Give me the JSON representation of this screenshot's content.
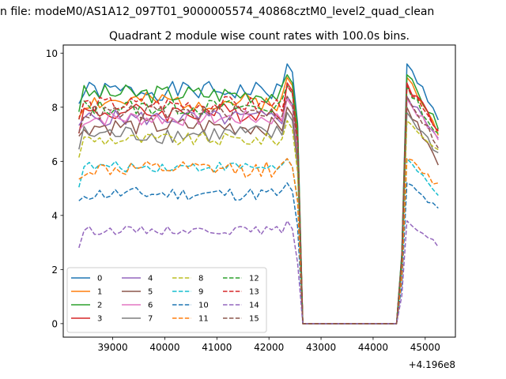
{
  "chart_data": {
    "type": "line",
    "suptitle": "n file: modeM0/AS1A12_097T01_9000005574_40868cztM0_level2_quad_clean",
    "title": "Quadrant 2 module wise count rates with 100.0s bins.",
    "xlabel": "",
    "ylabel": "",
    "x_offset_label": "+4.196e8",
    "x_offset_value": 419600000,
    "x_ticks": [
      39000,
      40000,
      41000,
      42000,
      43000,
      44000,
      45000
    ],
    "y_ticks": [
      0,
      2,
      4,
      6,
      8,
      10
    ],
    "xlim": [
      38050,
      45580
    ],
    "ylim": [
      -0.5,
      10.3
    ],
    "grid": false,
    "legend_position": "lower-left",
    "legend_columns": 4,
    "x_start": 38350,
    "x_step": 100,
    "gap_start_index": 42,
    "gap_end_index": 61,
    "series": [
      {
        "name": "0",
        "color": "#1f77b4",
        "style": "solid",
        "level": 8.6,
        "amp": 0.35,
        "peak": 9.6,
        "tail": 7.7,
        "seed": 1
      },
      {
        "name": "1",
        "color": "#ff7f0e",
        "style": "solid",
        "level": 8.2,
        "amp": 0.35,
        "peak": 9.1,
        "tail": 7.1,
        "seed": 2
      },
      {
        "name": "2",
        "color": "#2ca02c",
        "style": "solid",
        "level": 8.5,
        "amp": 0.35,
        "peak": 9.2,
        "tail": 7.3,
        "seed": 3
      },
      {
        "name": "3",
        "color": "#d62728",
        "style": "solid",
        "level": 7.8,
        "amp": 0.35,
        "peak": 8.9,
        "tail": 7.2,
        "seed": 4
      },
      {
        "name": "4",
        "color": "#9467bd",
        "style": "solid",
        "level": 7.6,
        "amp": 0.3,
        "peak": 8.4,
        "tail": 6.9,
        "seed": 5
      },
      {
        "name": "5",
        "color": "#8c564b",
        "style": "solid",
        "level": 7.3,
        "amp": 0.35,
        "peak": 8.0,
        "tail": 5.9,
        "seed": 6
      },
      {
        "name": "6",
        "color": "#e377c2",
        "style": "solid",
        "level": 7.6,
        "amp": 0.3,
        "peak": 8.3,
        "tail": 6.8,
        "seed": 7
      },
      {
        "name": "7",
        "color": "#7f7f7f",
        "style": "solid",
        "level": 7.0,
        "amp": 0.35,
        "peak": 7.8,
        "tail": 6.3,
        "seed": 8
      },
      {
        "name": "8",
        "color": "#bcbd22",
        "style": "dashed",
        "level": 6.8,
        "amp": 0.25,
        "peak": 7.5,
        "tail": 6.4,
        "seed": 9
      },
      {
        "name": "9",
        "color": "#17becf",
        "style": "dashed",
        "level": 5.8,
        "amp": 0.2,
        "peak": 6.1,
        "tail": 4.7,
        "seed": 10
      },
      {
        "name": "10",
        "color": "#1f77b4",
        "style": "dashed",
        "level": 4.8,
        "amp": 0.25,
        "peak": 5.2,
        "tail": 4.2,
        "seed": 11
      },
      {
        "name": "11",
        "color": "#ff7f0e",
        "style": "dashed",
        "level": 5.7,
        "amp": 0.3,
        "peak": 6.1,
        "tail": 5.1,
        "seed": 12
      },
      {
        "name": "12",
        "color": "#2ca02c",
        "style": "dashed",
        "level": 8.0,
        "amp": 0.3,
        "peak": 8.8,
        "tail": 6.9,
        "seed": 13
      },
      {
        "name": "13",
        "color": "#d62728",
        "style": "dashed",
        "level": 8.1,
        "amp": 0.3,
        "peak": 8.8,
        "tail": 7.0,
        "seed": 14
      },
      {
        "name": "14",
        "color": "#9467bd",
        "style": "dashed",
        "level": 3.45,
        "amp": 0.15,
        "peak": 3.8,
        "tail": 2.9,
        "seed": 15
      },
      {
        "name": "15",
        "color": "#8c564b",
        "style": "dashed",
        "level": 7.8,
        "amp": 0.3,
        "peak": 8.4,
        "tail": 6.6,
        "seed": 16
      }
    ]
  }
}
